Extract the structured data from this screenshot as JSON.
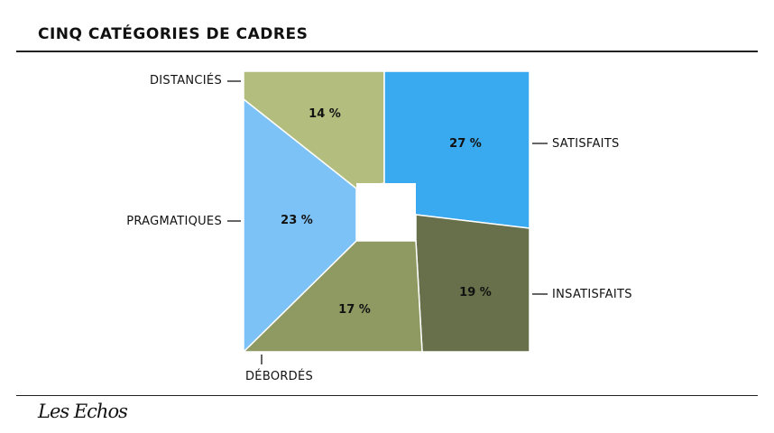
{
  "title": "CINQ CATÉGORIES DE CADRES",
  "logo": "Les Echos",
  "colors": {
    "distancies": "#b3bd7e",
    "satisfaits": "#3aaaf0",
    "insatisfaits": "#67704a",
    "debordes": "#8f9a62",
    "pragmatiques": "#7dc2f7"
  },
  "chart_data": {
    "type": "pie",
    "title": "CINQ CATÉGORIES DE CADRES",
    "unit": "%",
    "slices": [
      {
        "key": "distancies",
        "label": "DISTANCIÉS",
        "value": 14,
        "value_label": "14 %"
      },
      {
        "key": "satisfaits",
        "label": "SATISFAITS",
        "value": 27,
        "value_label": "27 %"
      },
      {
        "key": "insatisfaits",
        "label": "INSATISFAITS",
        "value": 19,
        "value_label": "19 %"
      },
      {
        "key": "debordes",
        "label": "DÉBORDÉS",
        "value": 17,
        "value_label": "17 %"
      },
      {
        "key": "pragmatiques",
        "label": "PRAGMATIQUES",
        "value": 23,
        "value_label": "23 %"
      }
    ]
  }
}
